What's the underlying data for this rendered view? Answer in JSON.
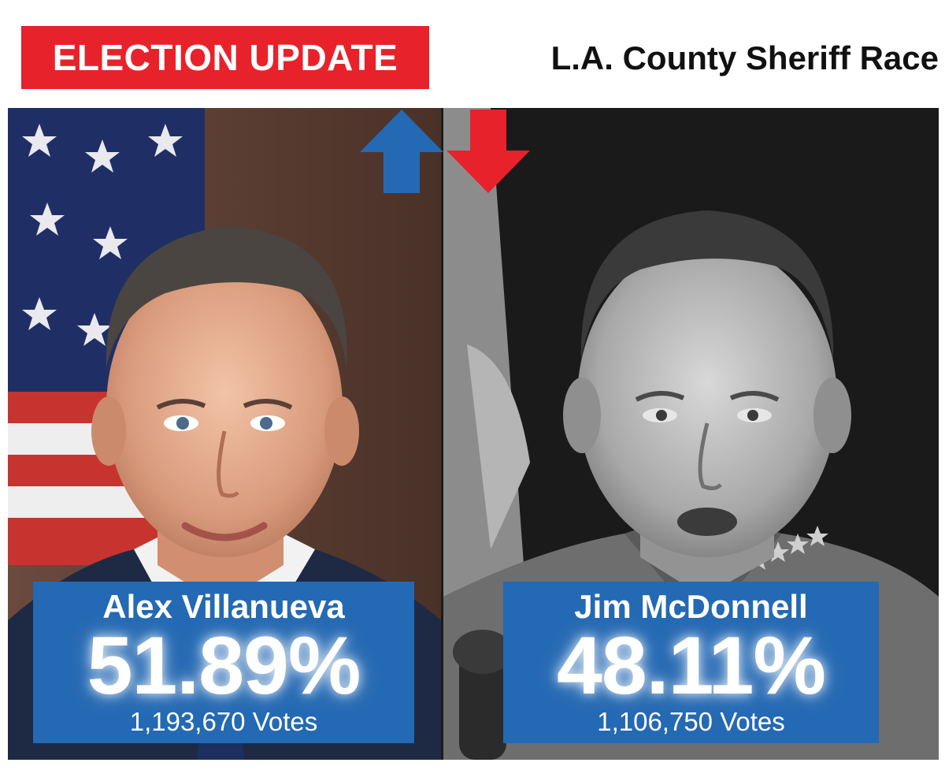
{
  "header": {
    "badge": "ELECTION UPDATE",
    "title": "L.A. County Sheriff Race"
  },
  "candidates": [
    {
      "name": "Alex Villanueva",
      "percent": "51.89%",
      "votes": "1,193,670 Votes",
      "trend": "up",
      "trend_color": "#2469b3"
    },
    {
      "name": "Jim McDonnell",
      "percent": "48.11%",
      "votes": "1,106,750 Votes",
      "trend": "down",
      "trend_color": "#e8222b"
    }
  ],
  "colors": {
    "badge_bg": "#e8222b",
    "card_bg": "#2469b3",
    "up_arrow": "#2469b3",
    "down_arrow": "#e8222b"
  }
}
